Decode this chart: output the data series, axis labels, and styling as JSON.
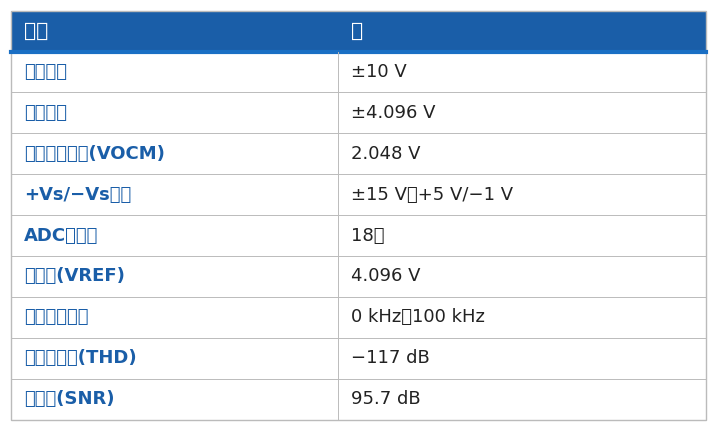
{
  "header": [
    "参数",
    "值"
  ],
  "rows": [
    [
      "输入差分",
      "±10 V"
    ],
    [
      "输出差分",
      "±4.096 V"
    ],
    [
      "输出共模电压(VOCM)",
      "2.048 V"
    ],
    [
      "+Vs/−Vs电源",
      "±15 V、+5 V/−1 V"
    ],
    [
      "ADC全差分",
      "18位"
    ],
    [
      "准电压(VREF)",
      "4.096 V"
    ],
    [
      "输入频率范围",
      "0 kHz至100 kHz"
    ],
    [
      "总谐波失真(THD)",
      "−117 dB"
    ],
    [
      "信噪比(SNR)",
      "95.7 dB"
    ]
  ],
  "header_bg": "#1A5EA8",
  "header_text_color": "#FFFFFF",
  "row_bg": "#FFFFFF",
  "row_text_color": "#1A5EA8",
  "border_color": "#BBBBBB",
  "fig_bg": "#FFFFFF",
  "col_split": 0.47,
  "header_font_size": 14.5,
  "row_font_size": 13.0
}
